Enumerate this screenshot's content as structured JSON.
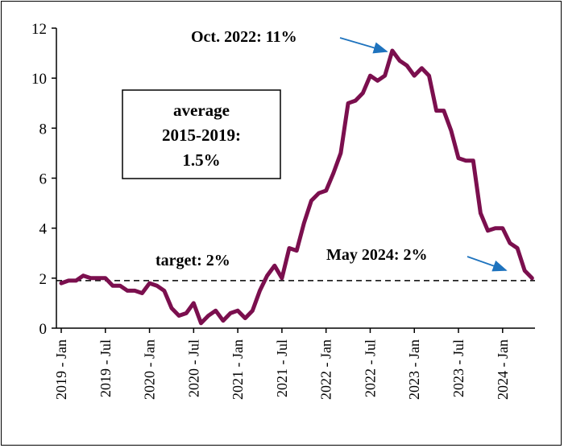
{
  "chart_data": {
    "type": "line",
    "title": "",
    "xlabel": "",
    "ylabel": "",
    "ylim": [
      0,
      12
    ],
    "yticks": [
      "0",
      "2",
      "4",
      "6",
      "8",
      "10",
      "12"
    ],
    "xticks": [
      "2019 - Jan",
      "2019 - Jul",
      "2020 - Jan",
      "2020 - Jul",
      "2021 - Jan",
      "2021 - Jul",
      "2022 - Jan",
      "2022 - Jul",
      "2023 - Jan",
      "2023 - Jul",
      "2024 - Jan"
    ],
    "grid": false,
    "legend": "none",
    "line_color": "#7b0f4e",
    "annotation_arrow_color": "#1e73be",
    "series": [
      {
        "x": [
          "2019-01",
          "2019-02",
          "2019-03",
          "2019-04",
          "2019-05",
          "2019-06",
          "2019-07",
          "2019-08",
          "2019-09",
          "2019-10",
          "2019-11",
          "2019-12",
          "2020-01",
          "2020-02",
          "2020-03",
          "2020-04",
          "2020-05",
          "2020-06",
          "2020-07",
          "2020-08",
          "2020-09",
          "2020-10",
          "2020-11",
          "2020-12",
          "2021-01",
          "2021-02",
          "2021-03",
          "2021-04",
          "2021-05",
          "2021-06",
          "2021-07",
          "2021-08",
          "2021-09",
          "2021-10",
          "2021-11",
          "2021-12",
          "2022-01",
          "2022-02",
          "2022-03",
          "2022-04",
          "2022-05",
          "2022-06",
          "2022-07",
          "2022-08",
          "2022-09",
          "2022-10",
          "2022-11",
          "2022-12",
          "2023-01",
          "2023-02",
          "2023-03",
          "2023-04",
          "2023-05",
          "2023-06",
          "2023-07",
          "2023-08",
          "2023-09",
          "2023-10",
          "2023-11",
          "2023-12",
          "2024-01",
          "2024-02",
          "2024-03",
          "2024-04",
          "2024-05"
        ],
        "values": [
          1.8,
          1.9,
          1.9,
          2.1,
          2.0,
          2.0,
          2.0,
          1.7,
          1.7,
          1.5,
          1.5,
          1.4,
          1.8,
          1.7,
          1.5,
          0.8,
          0.5,
          0.6,
          1.0,
          0.2,
          0.5,
          0.7,
          0.3,
          0.6,
          0.7,
          0.4,
          0.7,
          1.5,
          2.1,
          2.5,
          2.0,
          3.2,
          3.1,
          4.2,
          5.1,
          5.4,
          5.5,
          6.2,
          7.0,
          9.0,
          9.1,
          9.4,
          10.1,
          9.9,
          10.1,
          11.1,
          10.7,
          10.5,
          10.1,
          10.4,
          10.1,
          8.7,
          8.7,
          7.9,
          6.8,
          6.7,
          6.7,
          4.6,
          3.9,
          4.0,
          4.0,
          3.4,
          3.2,
          2.3,
          2.0
        ]
      }
    ],
    "reference_line": {
      "label": "target: 2%",
      "value": 2,
      "style": "dashed"
    },
    "annotations": {
      "peak": "Oct. 2022: 11%",
      "latest": "May 2024: 2%"
    },
    "box": {
      "line1": "average",
      "line2": "2015-2019:",
      "line3": "1.5%"
    }
  }
}
